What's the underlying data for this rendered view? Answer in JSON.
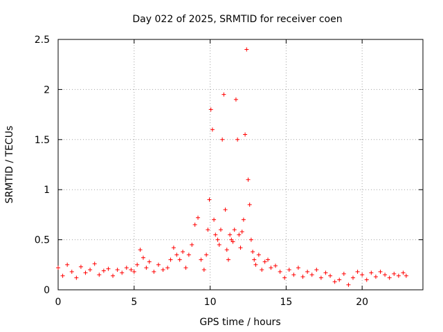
{
  "chart_data": {
    "type": "scatter",
    "title": "Day 022 of 2025, SRMTID for receiver coen",
    "xlabel": "GPS time / hours",
    "ylabel": "SRMTID / TECUs",
    "xlim": [
      0,
      24
    ],
    "ylim": [
      0,
      2.5
    ],
    "x_ticks": [
      0,
      5,
      10,
      15,
      20
    ],
    "x_tick_labels": [
      "0",
      "5",
      "10",
      "15",
      "20"
    ],
    "y_ticks": [
      0,
      0.5,
      1,
      1.5,
      2,
      2.5
    ],
    "y_tick_labels": [
      "0",
      "0.5",
      "1",
      "1.5",
      "2",
      "2.5"
    ],
    "grid": true,
    "marker": "+",
    "marker_color": "#ff0000",
    "series": [
      {
        "name": "SRMTID",
        "x": [
          0.0,
          0.3,
          0.6,
          0.9,
          1.2,
          1.5,
          1.8,
          2.1,
          2.4,
          2.7,
          3.0,
          3.3,
          3.6,
          3.9,
          4.2,
          4.5,
          4.8,
          5.0,
          5.2,
          5.4,
          5.6,
          5.8,
          6.0,
          6.3,
          6.6,
          6.9,
          7.2,
          7.4,
          7.6,
          7.8,
          8.0,
          8.2,
          8.4,
          8.6,
          8.8,
          9.0,
          9.2,
          9.4,
          9.6,
          9.75,
          9.85,
          9.95,
          10.05,
          10.15,
          10.25,
          10.35,
          10.5,
          10.6,
          10.7,
          10.8,
          10.9,
          11.0,
          11.1,
          11.2,
          11.3,
          11.4,
          11.5,
          11.6,
          11.7,
          11.8,
          11.9,
          12.0,
          12.1,
          12.2,
          12.3,
          12.4,
          12.5,
          12.6,
          12.7,
          12.8,
          12.9,
          13.0,
          13.2,
          13.4,
          13.6,
          13.8,
          14.0,
          14.3,
          14.6,
          14.9,
          15.2,
          15.5,
          15.8,
          16.1,
          16.4,
          16.7,
          17.0,
          17.3,
          17.6,
          17.9,
          18.2,
          18.5,
          18.8,
          19.1,
          19.4,
          19.7,
          20.0,
          20.3,
          20.6,
          20.9,
          21.2,
          21.5,
          21.8,
          22.1,
          22.4,
          22.7,
          22.9
        ],
        "y": [
          0.22,
          0.14,
          0.25,
          0.18,
          0.12,
          0.23,
          0.17,
          0.2,
          0.26,
          0.15,
          0.19,
          0.21,
          0.14,
          0.2,
          0.17,
          0.22,
          0.2,
          0.18,
          0.25,
          0.4,
          0.32,
          0.22,
          0.28,
          0.18,
          0.25,
          0.2,
          0.22,
          0.3,
          0.42,
          0.35,
          0.3,
          0.38,
          0.22,
          0.35,
          0.45,
          0.65,
          0.72,
          0.3,
          0.2,
          0.35,
          0.6,
          0.9,
          1.8,
          1.6,
          0.7,
          0.55,
          0.5,
          0.45,
          0.6,
          1.5,
          1.95,
          0.8,
          0.4,
          0.3,
          0.55,
          0.5,
          0.48,
          0.6,
          1.9,
          1.5,
          0.55,
          0.42,
          0.58,
          0.7,
          1.55,
          2.4,
          1.1,
          0.85,
          0.5,
          0.38,
          0.3,
          0.25,
          0.35,
          0.2,
          0.28,
          0.3,
          0.22,
          0.24,
          0.18,
          0.12,
          0.2,
          0.15,
          0.22,
          0.13,
          0.18,
          0.15,
          0.2,
          0.12,
          0.17,
          0.14,
          0.08,
          0.1,
          0.16,
          0.05,
          0.12,
          0.18,
          0.15,
          0.1,
          0.17,
          0.13,
          0.18,
          0.15,
          0.12,
          0.16,
          0.14,
          0.17,
          0.14
        ]
      }
    ]
  }
}
